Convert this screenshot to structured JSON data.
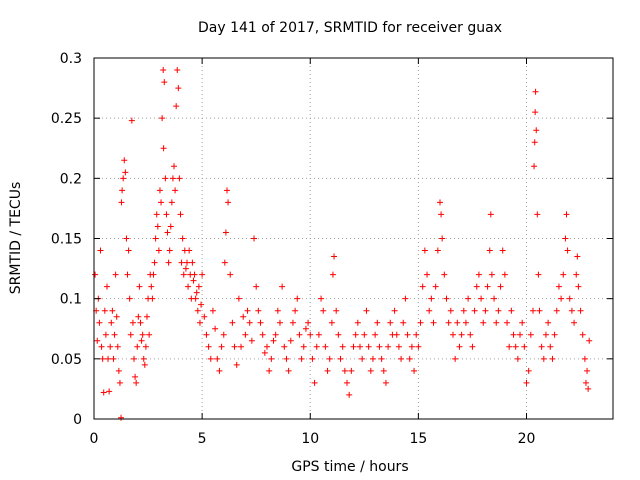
{
  "chart_data": {
    "type": "scatter",
    "title": "Day 141 of 2017, SRMTID for receiver guax",
    "xlabel": "GPS time / hours",
    "ylabel": "SRMTID / TECUs",
    "xlim": [
      0,
      24
    ],
    "ylim": [
      0,
      0.3
    ],
    "x_ticks": [
      0,
      5,
      10,
      15,
      20
    ],
    "x_tick_labels": [
      "0",
      "5",
      "10",
      "15",
      "20"
    ],
    "y_ticks": [
      0,
      0.05,
      0.1,
      0.15,
      0.2,
      0.25,
      0.3
    ],
    "y_tick_labels": [
      "0",
      "0.05",
      "0.1",
      "0.15",
      "0.2",
      "0.25",
      "0.3"
    ],
    "grid": true,
    "marker": "+",
    "series": [
      {
        "name": "SRMTID",
        "color": "#ff0000",
        "points": [
          [
            0.05,
            0.12
          ],
          [
            0.1,
            0.09
          ],
          [
            0.15,
            0.065
          ],
          [
            0.2,
            0.1
          ],
          [
            0.25,
            0.08
          ],
          [
            0.3,
            0.14
          ],
          [
            0.35,
            0.06
          ],
          [
            0.4,
            0.05
          ],
          [
            0.45,
            0.022
          ],
          [
            0.5,
            0.09
          ],
          [
            0.55,
            0.07
          ],
          [
            0.6,
            0.11
          ],
          [
            0.65,
            0.05
          ],
          [
            0.7,
            0.023
          ],
          [
            0.75,
            0.06
          ],
          [
            0.8,
            0.08
          ],
          [
            0.85,
            0.09
          ],
          [
            0.9,
            0.05
          ],
          [
            0.95,
            0.07
          ],
          [
            1.0,
            0.12
          ],
          [
            1.05,
            0.085
          ],
          [
            1.1,
            0.06
          ],
          [
            1.15,
            0.04
          ],
          [
            1.2,
            0.03
          ],
          [
            1.25,
            0.001
          ],
          [
            1.27,
            0.18
          ],
          [
            1.3,
            0.19
          ],
          [
            1.35,
            0.2
          ],
          [
            1.4,
            0.215
          ],
          [
            1.45,
            0.205
          ],
          [
            1.5,
            0.15
          ],
          [
            1.55,
            0.12
          ],
          [
            1.6,
            0.14
          ],
          [
            1.65,
            0.1
          ],
          [
            1.7,
            0.07
          ],
          [
            1.75,
            0.248
          ],
          [
            1.8,
            0.08
          ],
          [
            1.85,
            0.05
          ],
          [
            1.9,
            0.035
          ],
          [
            1.95,
            0.03
          ],
          [
            2.0,
            0.06
          ],
          [
            2.05,
            0.085
          ],
          [
            2.1,
            0.11
          ],
          [
            2.15,
            0.08
          ],
          [
            2.2,
            0.065
          ],
          [
            2.25,
            0.07
          ],
          [
            2.3,
            0.05
          ],
          [
            2.35,
            0.045
          ],
          [
            2.4,
            0.06
          ],
          [
            2.45,
            0.085
          ],
          [
            2.5,
            0.1
          ],
          [
            2.55,
            0.07
          ],
          [
            2.6,
            0.12
          ],
          [
            2.65,
            0.11
          ],
          [
            2.7,
            0.1
          ],
          [
            2.75,
            0.12
          ],
          [
            2.8,
            0.13
          ],
          [
            2.85,
            0.15
          ],
          [
            2.9,
            0.17
          ],
          [
            2.95,
            0.16
          ],
          [
            3.0,
            0.14
          ],
          [
            3.05,
            0.19
          ],
          [
            3.1,
            0.18
          ],
          [
            3.15,
            0.25
          ],
          [
            3.2,
            0.29
          ],
          [
            3.22,
            0.225
          ],
          [
            3.25,
            0.28
          ],
          [
            3.3,
            0.2
          ],
          [
            3.35,
            0.17
          ],
          [
            3.4,
            0.155
          ],
          [
            3.45,
            0.13
          ],
          [
            3.5,
            0.14
          ],
          [
            3.55,
            0.16
          ],
          [
            3.6,
            0.18
          ],
          [
            3.65,
            0.2
          ],
          [
            3.7,
            0.21
          ],
          [
            3.75,
            0.19
          ],
          [
            3.8,
            0.26
          ],
          [
            3.85,
            0.29
          ],
          [
            3.9,
            0.275
          ],
          [
            3.95,
            0.2
          ],
          [
            4.0,
            0.17
          ],
          [
            4.05,
            0.13
          ],
          [
            4.1,
            0.15
          ],
          [
            4.15,
            0.12
          ],
          [
            4.2,
            0.14
          ],
          [
            4.25,
            0.125
          ],
          [
            4.3,
            0.13
          ],
          [
            4.35,
            0.11
          ],
          [
            4.4,
            0.14
          ],
          [
            4.45,
            0.12
          ],
          [
            4.5,
            0.1
          ],
          [
            4.55,
            0.13
          ],
          [
            4.6,
            0.115
          ],
          [
            4.65,
            0.12
          ],
          [
            4.7,
            0.1
          ],
          [
            4.75,
            0.105
          ],
          [
            4.8,
            0.09
          ],
          [
            4.85,
            0.11
          ],
          [
            4.9,
            0.08
          ],
          [
            4.95,
            0.095
          ],
          [
            5.0,
            0.12
          ],
          [
            5.1,
            0.085
          ],
          [
            5.2,
            0.07
          ],
          [
            5.3,
            0.06
          ],
          [
            5.4,
            0.05
          ],
          [
            5.5,
            0.09
          ],
          [
            5.6,
            0.075
          ],
          [
            5.7,
            0.05
          ],
          [
            5.8,
            0.04
          ],
          [
            5.9,
            0.06
          ],
          [
            6.0,
            0.07
          ],
          [
            6.05,
            0.13
          ],
          [
            6.1,
            0.155
          ],
          [
            6.15,
            0.19
          ],
          [
            6.2,
            0.18
          ],
          [
            6.3,
            0.12
          ],
          [
            6.4,
            0.08
          ],
          [
            6.5,
            0.06
          ],
          [
            6.6,
            0.045
          ],
          [
            6.7,
            0.1
          ],
          [
            6.8,
            0.06
          ],
          [
            6.9,
            0.085
          ],
          [
            7.0,
            0.07
          ],
          [
            7.1,
            0.09
          ],
          [
            7.2,
            0.08
          ],
          [
            7.3,
            0.065
          ],
          [
            7.4,
            0.15
          ],
          [
            7.5,
            0.11
          ],
          [
            7.6,
            0.09
          ],
          [
            7.7,
            0.08
          ],
          [
            7.8,
            0.07
          ],
          [
            7.9,
            0.055
          ],
          [
            8.0,
            0.06
          ],
          [
            8.1,
            0.04
          ],
          [
            8.2,
            0.05
          ],
          [
            8.3,
            0.065
          ],
          [
            8.4,
            0.07
          ],
          [
            8.5,
            0.09
          ],
          [
            8.6,
            0.08
          ],
          [
            8.7,
            0.11
          ],
          [
            8.8,
            0.06
          ],
          [
            8.9,
            0.05
          ],
          [
            9.0,
            0.04
          ],
          [
            9.1,
            0.065
          ],
          [
            9.2,
            0.08
          ],
          [
            9.3,
            0.09
          ],
          [
            9.4,
            0.1
          ],
          [
            9.5,
            0.07
          ],
          [
            9.6,
            0.05
          ],
          [
            9.7,
            0.06
          ],
          [
            9.8,
            0.075
          ],
          [
            9.9,
            0.08
          ],
          [
            10.0,
            0.07
          ],
          [
            10.1,
            0.05
          ],
          [
            10.2,
            0.03
          ],
          [
            10.3,
            0.06
          ],
          [
            10.4,
            0.07
          ],
          [
            10.5,
            0.1
          ],
          [
            10.6,
            0.09
          ],
          [
            10.7,
            0.06
          ],
          [
            10.8,
            0.04
          ],
          [
            10.9,
            0.05
          ],
          [
            11.0,
            0.08
          ],
          [
            11.05,
            0.12
          ],
          [
            11.1,
            0.135
          ],
          [
            11.2,
            0.09
          ],
          [
            11.3,
            0.07
          ],
          [
            11.4,
            0.05
          ],
          [
            11.5,
            0.06
          ],
          [
            11.6,
            0.04
          ],
          [
            11.7,
            0.03
          ],
          [
            11.8,
            0.02
          ],
          [
            11.9,
            0.04
          ],
          [
            12.0,
            0.06
          ],
          [
            12.1,
            0.07
          ],
          [
            12.2,
            0.08
          ],
          [
            12.3,
            0.06
          ],
          [
            12.4,
            0.05
          ],
          [
            12.5,
            0.07
          ],
          [
            12.6,
            0.09
          ],
          [
            12.7,
            0.06
          ],
          [
            12.8,
            0.04
          ],
          [
            12.9,
            0.05
          ],
          [
            13.0,
            0.07
          ],
          [
            13.1,
            0.08
          ],
          [
            13.2,
            0.06
          ],
          [
            13.3,
            0.05
          ],
          [
            13.4,
            0.04
          ],
          [
            13.5,
            0.03
          ],
          [
            13.6,
            0.06
          ],
          [
            13.7,
            0.08
          ],
          [
            13.8,
            0.07
          ],
          [
            13.9,
            0.09
          ],
          [
            14.0,
            0.07
          ],
          [
            14.1,
            0.06
          ],
          [
            14.2,
            0.05
          ],
          [
            14.3,
            0.08
          ],
          [
            14.4,
            0.1
          ],
          [
            14.5,
            0.07
          ],
          [
            14.6,
            0.05
          ],
          [
            14.7,
            0.06
          ],
          [
            14.8,
            0.04
          ],
          [
            14.9,
            0.07
          ],
          [
            15.0,
            0.06
          ],
          [
            15.1,
            0.08
          ],
          [
            15.2,
            0.11
          ],
          [
            15.3,
            0.14
          ],
          [
            15.4,
            0.12
          ],
          [
            15.5,
            0.09
          ],
          [
            15.6,
            0.1
          ],
          [
            15.7,
            0.08
          ],
          [
            15.8,
            0.11
          ],
          [
            15.9,
            0.14
          ],
          [
            16.0,
            0.18
          ],
          [
            16.05,
            0.17
          ],
          [
            16.1,
            0.15
          ],
          [
            16.2,
            0.12
          ],
          [
            16.3,
            0.1
          ],
          [
            16.4,
            0.08
          ],
          [
            16.5,
            0.09
          ],
          [
            16.6,
            0.07
          ],
          [
            16.7,
            0.05
          ],
          [
            16.8,
            0.08
          ],
          [
            16.9,
            0.06
          ],
          [
            17.0,
            0.07
          ],
          [
            17.1,
            0.09
          ],
          [
            17.2,
            0.08
          ],
          [
            17.3,
            0.1
          ],
          [
            17.4,
            0.07
          ],
          [
            17.5,
            0.06
          ],
          [
            17.6,
            0.09
          ],
          [
            17.7,
            0.11
          ],
          [
            17.8,
            0.12
          ],
          [
            17.9,
            0.1
          ],
          [
            18.0,
            0.08
          ],
          [
            18.1,
            0.09
          ],
          [
            18.2,
            0.11
          ],
          [
            18.3,
            0.14
          ],
          [
            18.35,
            0.17
          ],
          [
            18.4,
            0.12
          ],
          [
            18.5,
            0.1
          ],
          [
            18.6,
            0.08
          ],
          [
            18.7,
            0.09
          ],
          [
            18.8,
            0.11
          ],
          [
            18.9,
            0.14
          ],
          [
            19.0,
            0.12
          ],
          [
            19.1,
            0.08
          ],
          [
            19.2,
            0.06
          ],
          [
            19.3,
            0.09
          ],
          [
            19.4,
            0.07
          ],
          [
            19.5,
            0.06
          ],
          [
            19.6,
            0.05
          ],
          [
            19.7,
            0.07
          ],
          [
            19.8,
            0.08
          ],
          [
            19.9,
            0.06
          ],
          [
            20.0,
            0.03
          ],
          [
            20.1,
            0.04
          ],
          [
            20.2,
            0.07
          ],
          [
            20.3,
            0.09
          ],
          [
            20.35,
            0.21
          ],
          [
            20.38,
            0.23
          ],
          [
            20.4,
            0.255
          ],
          [
            20.42,
            0.272
          ],
          [
            20.45,
            0.24
          ],
          [
            20.5,
            0.17
          ],
          [
            20.55,
            0.12
          ],
          [
            20.6,
            0.09
          ],
          [
            20.7,
            0.06
          ],
          [
            20.8,
            0.05
          ],
          [
            20.9,
            0.07
          ],
          [
            21.0,
            0.08
          ],
          [
            21.1,
            0.06
          ],
          [
            21.2,
            0.05
          ],
          [
            21.3,
            0.07
          ],
          [
            21.4,
            0.09
          ],
          [
            21.5,
            0.11
          ],
          [
            21.6,
            0.1
          ],
          [
            21.7,
            0.12
          ],
          [
            21.8,
            0.15
          ],
          [
            21.85,
            0.17
          ],
          [
            21.9,
            0.14
          ],
          [
            22.0,
            0.1
          ],
          [
            22.1,
            0.09
          ],
          [
            22.2,
            0.08
          ],
          [
            22.3,
            0.12
          ],
          [
            22.35,
            0.135
          ],
          [
            22.4,
            0.11
          ],
          [
            22.5,
            0.09
          ],
          [
            22.6,
            0.07
          ],
          [
            22.7,
            0.05
          ],
          [
            22.75,
            0.03
          ],
          [
            22.8,
            0.04
          ],
          [
            22.85,
            0.025
          ],
          [
            22.9,
            0.065
          ]
        ]
      }
    ]
  }
}
